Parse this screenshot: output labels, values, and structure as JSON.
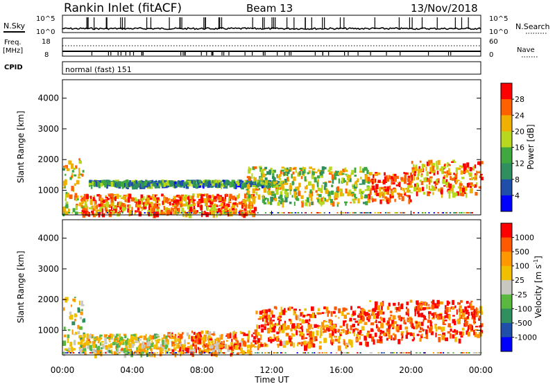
{
  "header": {
    "station": "Rankin Inlet (fitACF)",
    "beam": "Beam 13",
    "date": "13/Nov/2018"
  },
  "top_panel": {
    "left_label": "N.Sky",
    "right_label": "N.Search",
    "left_ticks": [
      "10^5",
      "10^0"
    ],
    "right_ticks": [
      "10^5",
      "10^0"
    ]
  },
  "freq_panel": {
    "left_label_1": "Freq.",
    "left_label_2": "[MHz]",
    "left_ticks": [
      "18",
      "8"
    ],
    "right_label": "Nave",
    "right_ticks": [
      "60",
      "0"
    ]
  },
  "cpid_panel": {
    "label": "CPID",
    "mode": "normal (fast) 151"
  },
  "x_axis": {
    "label": "Time UT",
    "ticks": [
      "00:00",
      "04:00",
      "08:00",
      "12:00",
      "16:00",
      "20:00",
      "00:00"
    ]
  },
  "colors": {
    "power_scale": [
      "#0000ff",
      "#1f4fa8",
      "#2f8f5f",
      "#3fa83f",
      "#b8d820",
      "#f0b000",
      "#ff6000",
      "#ff0000"
    ],
    "velocity_scale": [
      "#ff0000",
      "#ff5a00",
      "#ff9800",
      "#f0c000",
      "#c8c8c0",
      "#5ab840",
      "#2f8f5f",
      "#1f4fa8",
      "#0000ff"
    ]
  },
  "chart_data": [
    {
      "type": "heatmap",
      "quantity": "power",
      "ylabel": "Slant Range [km]",
      "xlabel": "",
      "yticks": [
        1000,
        2000,
        3000,
        4000
      ],
      "ylim": [
        200,
        4600
      ],
      "xlim_hours": [
        0,
        24
      ],
      "colorbar_label": "Power [dB]",
      "colorbar_ticks": [
        "4",
        "8",
        "12",
        "16",
        "20",
        "24",
        "28"
      ],
      "colorbar_range": [
        0,
        32
      ],
      "echo_regions": [
        {
          "t0": 0.0,
          "t1": 1.2,
          "r0": 300,
          "r1": 2100,
          "level": 0.6
        },
        {
          "t0": 1.0,
          "t1": 11.0,
          "r0": 250,
          "r1": 900,
          "level": 0.8
        },
        {
          "t0": 1.5,
          "t1": 12.5,
          "r0": 1200,
          "r1": 1350,
          "level": 0.35
        },
        {
          "t0": 10.5,
          "t1": 17.5,
          "r0": 600,
          "r1": 1800,
          "level": 0.55
        },
        {
          "t0": 17.5,
          "t1": 20.0,
          "r0": 700,
          "r1": 1600,
          "level": 0.85
        },
        {
          "t0": 20.0,
          "t1": 24.0,
          "r0": 900,
          "r1": 2000,
          "level": 0.75
        }
      ]
    },
    {
      "type": "heatmap",
      "quantity": "velocity",
      "ylabel": "Slant Range [km]",
      "xlabel": "Time UT",
      "yticks": [
        1000,
        2000,
        3000,
        4000
      ],
      "ylim": [
        200,
        4600
      ],
      "xlim_hours": [
        0,
        24
      ],
      "colorbar_label": "Velocity [m s",
      "colorbar_unit_exponent": "-1",
      "colorbar_unit_close": "]",
      "colorbar_ticks": [
        "1000",
        "500",
        "100",
        "25",
        "-25",
        "-100",
        "-500",
        "-1000"
      ],
      "echo_regions": [
        {
          "t0": 0.0,
          "t1": 1.2,
          "r0": 300,
          "r1": 2100,
          "level": 0.5
        },
        {
          "t0": 1.0,
          "t1": 6.0,
          "r0": 250,
          "r1": 900,
          "level": 0.45
        },
        {
          "t0": 6.0,
          "t1": 11.0,
          "r0": 250,
          "r1": 1000,
          "level": 0.25
        },
        {
          "t0": 11.0,
          "t1": 17.5,
          "r0": 500,
          "r1": 1800,
          "level": 0.2
        },
        {
          "t0": 17.5,
          "t1": 24.0,
          "r0": 700,
          "r1": 2000,
          "level": 0.12
        }
      ]
    }
  ]
}
